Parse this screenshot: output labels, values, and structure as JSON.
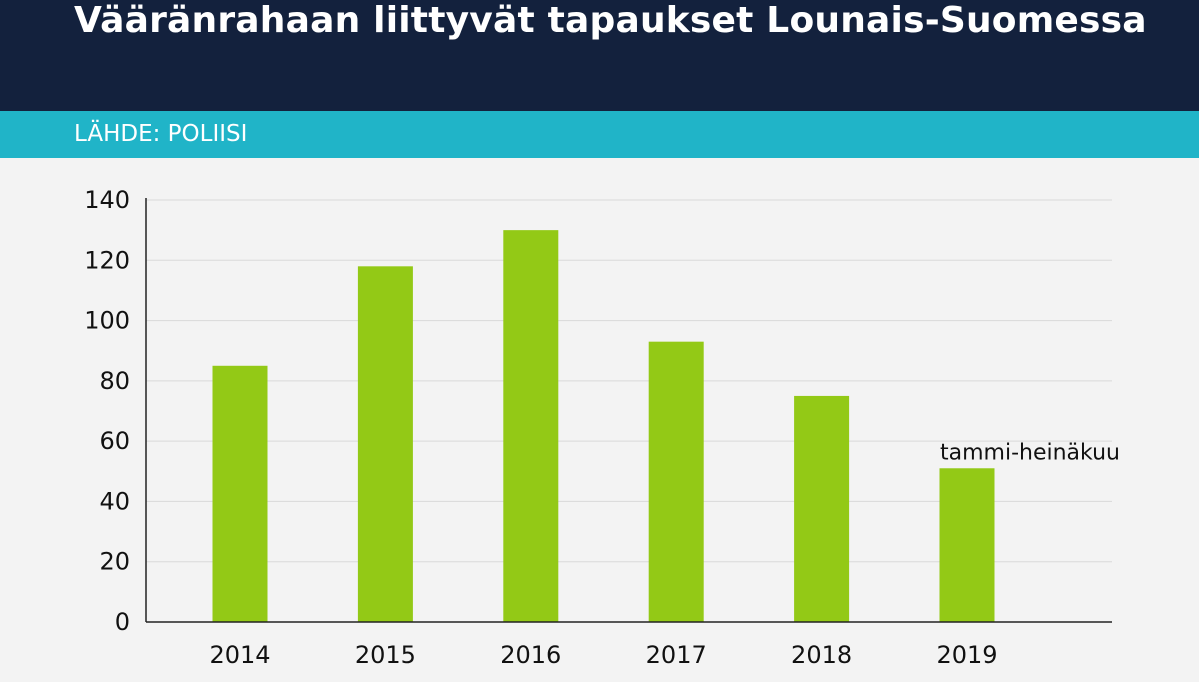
{
  "header": {
    "title": "Vääränrahaan liittyvät tapaukset Lounais-Suomessa",
    "source": "LÄHDE: POLIISI"
  },
  "colors": {
    "header_bg": "#13213d",
    "source_bg": "#20b4c8",
    "bar": "#93c916",
    "background": "#f3f3f3"
  },
  "chart_data": {
    "type": "bar",
    "title": "Vääränrahaan liittyvät tapaukset Lounais-Suomessa",
    "xlabel": "",
    "ylabel": "",
    "categories": [
      "2014",
      "2015",
      "2016",
      "2017",
      "2018",
      "2019"
    ],
    "values": [
      85,
      118,
      130,
      93,
      75,
      51
    ],
    "ylim": [
      0,
      140
    ],
    "yticks": [
      0,
      20,
      40,
      60,
      80,
      100,
      120,
      140
    ],
    "grid": true,
    "annotations": [
      {
        "category": "2019",
        "text": "tammi-heinäkuu"
      }
    ]
  }
}
